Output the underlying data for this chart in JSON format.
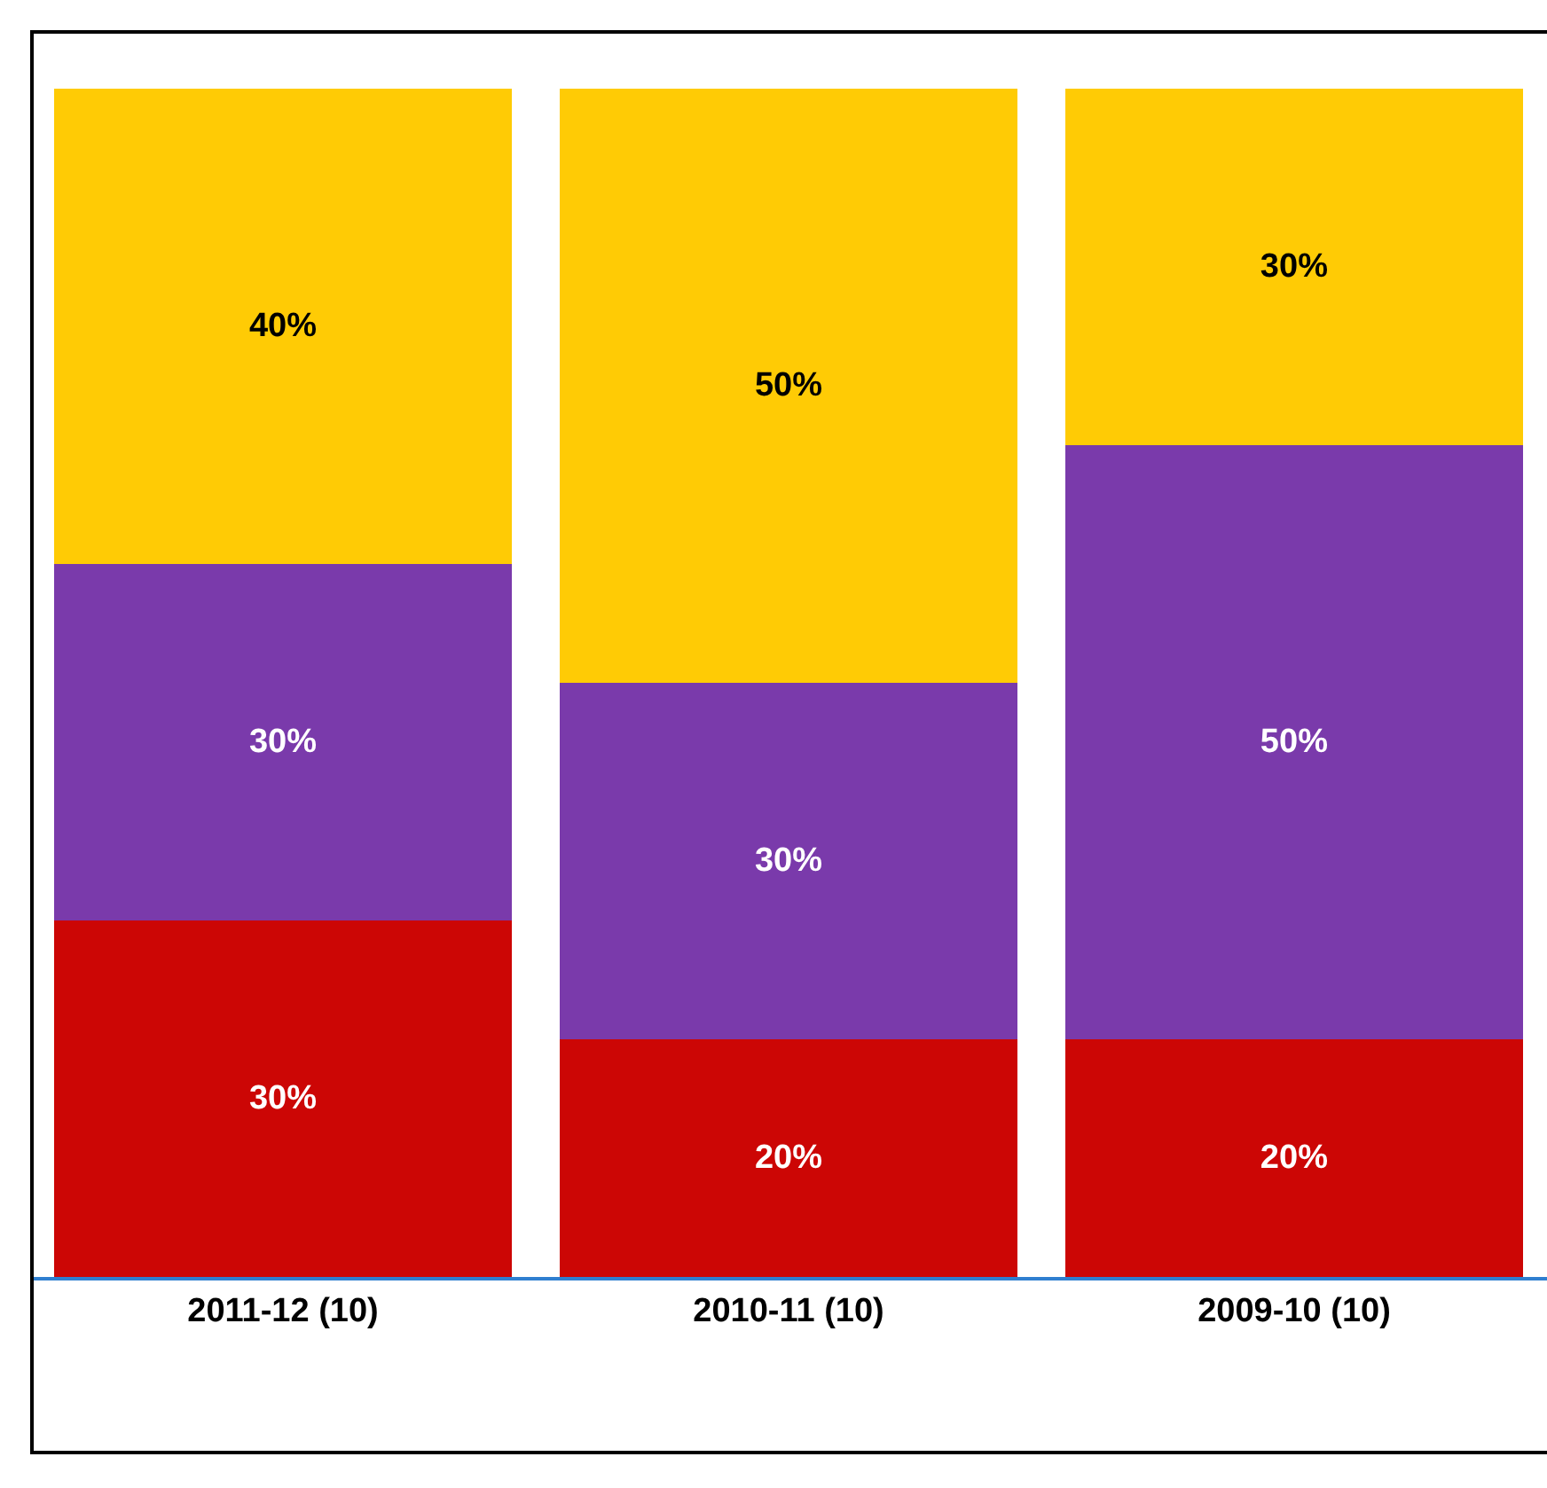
{
  "chart_data": {
    "type": "bar",
    "stacked": true,
    "categories": [
      "2011-12 (10)",
      "2010-11 (10)",
      "2009-10 (10)"
    ],
    "ylim": [
      0,
      100
    ],
    "tick_labels": "x",
    "grid": false,
    "series": [
      {
        "color": "#cc0605",
        "values": [
          30,
          20,
          20
        ],
        "value_labels": [
          "30%",
          "20%",
          "20%"
        ]
      },
      {
        "color": "#7a3aab",
        "values": [
          30,
          30,
          50
        ],
        "value_labels": [
          "30%",
          "30%",
          "50%"
        ]
      },
      {
        "color": "#ffcb05",
        "values": [
          40,
          50,
          30
        ],
        "value_labels": [
          "40%",
          "50%",
          "30%"
        ]
      }
    ]
  }
}
